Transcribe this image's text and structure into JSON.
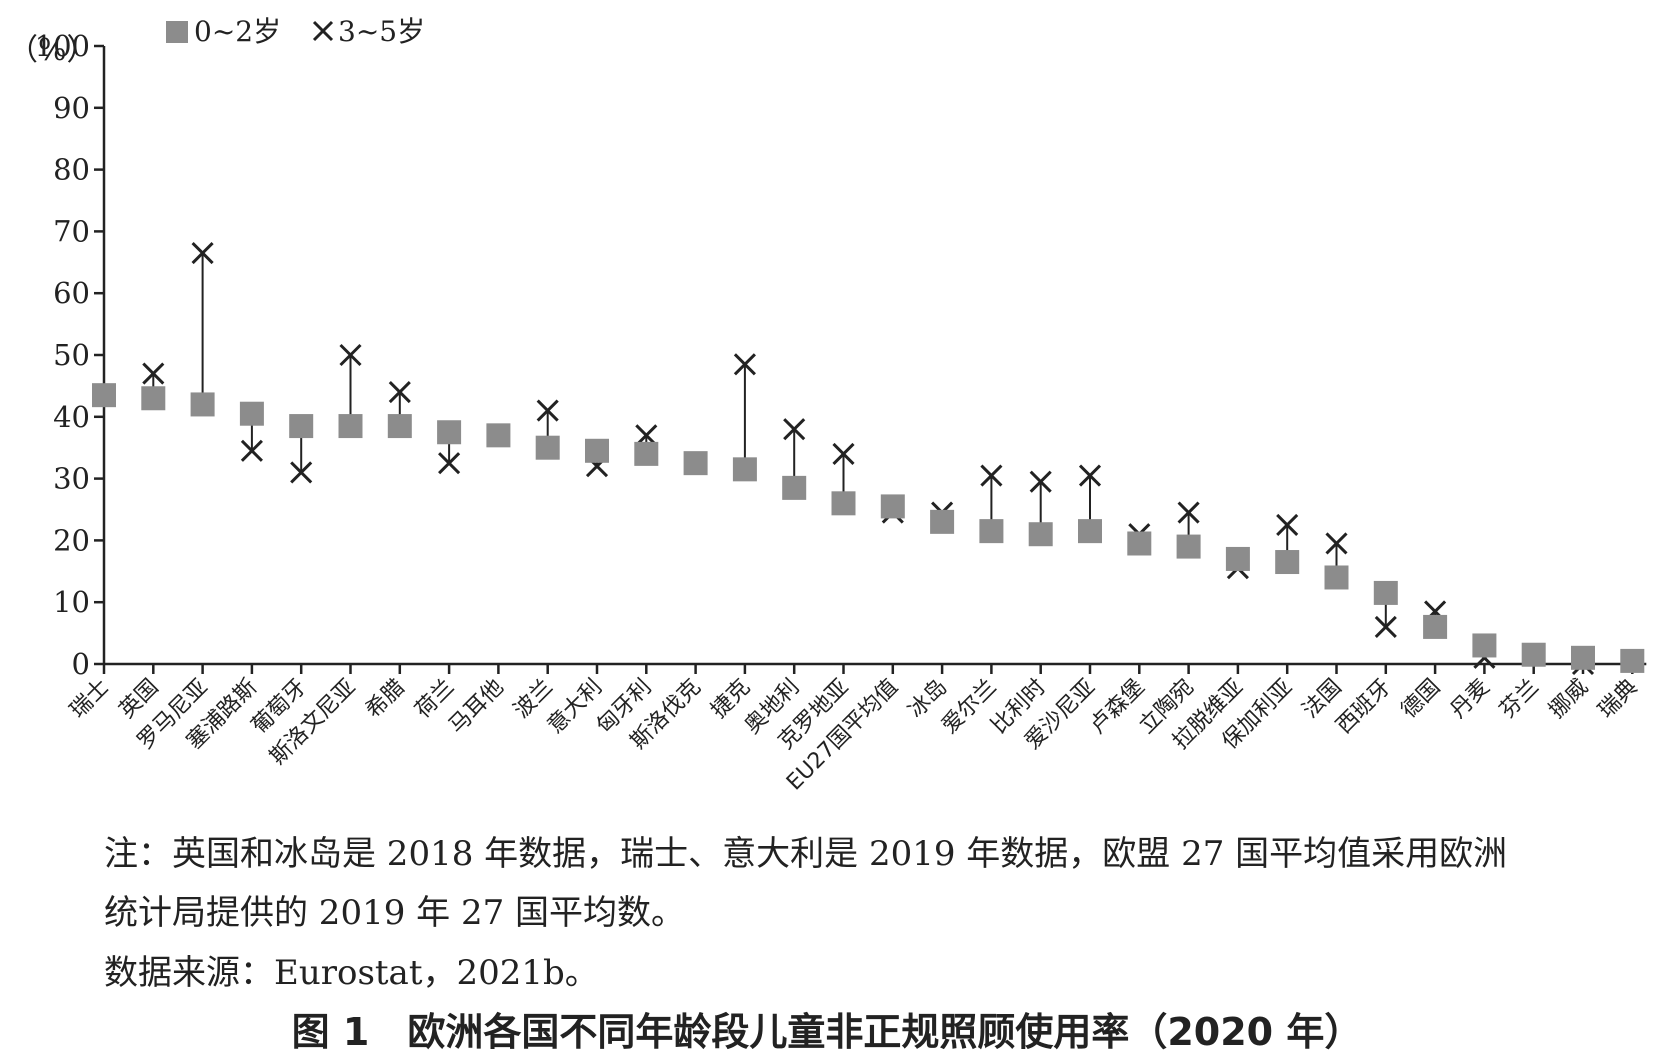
{
  "chart_data": {
    "type": "scatter",
    "ylabel": "（%）",
    "ylim": [
      0,
      100
    ],
    "yticks": [
      0,
      10,
      20,
      30,
      40,
      50,
      60,
      70,
      80,
      90,
      100
    ],
    "grid": false,
    "legend_position": "top-left",
    "categories": [
      "瑞士",
      "英国",
      "罗马尼亚",
      "塞浦路斯",
      "葡萄牙",
      "斯洛文尼亚",
      "希腊",
      "荷兰",
      "马耳他",
      "波兰",
      "意大利",
      "匈牙利",
      "斯洛伐克",
      "捷克",
      "奥地利",
      "克罗地亚",
      "EU27国平均值",
      "冰岛",
      "爱尔兰",
      "比利时",
      "爱沙尼亚",
      "卢森堡",
      "立陶宛",
      "拉脱维亚",
      "保加利亚",
      "法国",
      "西班牙",
      "德国",
      "丹麦",
      "芬兰",
      "挪威",
      "瑞典"
    ],
    "series": [
      {
        "name": "0~2岁",
        "marker": "square",
        "color": "#8c8c8c",
        "values": [
          43.5,
          43,
          42,
          40.5,
          38.5,
          38.5,
          38.5,
          37.5,
          37,
          35,
          34.5,
          34,
          32.5,
          31.5,
          28.5,
          26,
          25.5,
          23,
          21.5,
          21,
          21.5,
          19.5,
          19,
          17,
          16.5,
          14,
          11.5,
          6,
          3,
          1.5,
          1,
          0.5
        ]
      },
      {
        "name": "3~5岁",
        "marker": "x",
        "color": "#222222",
        "values": [
          null,
          47,
          66.5,
          34.5,
          31,
          50,
          44,
          32.5,
          null,
          41,
          32,
          37,
          null,
          48.5,
          38,
          34,
          24.5,
          24.5,
          30.5,
          29.5,
          30.5,
          21,
          24.5,
          15.5,
          22.5,
          19.5,
          6,
          8.5,
          1,
          null,
          0,
          null
        ]
      }
    ]
  },
  "notes": {
    "line1": "注：英国和冰岛是 2018 年数据，瑞士、意大利是 2019 年数据，欧盟 27 国平均值采用欧洲",
    "line2": "统计局提供的 2019 年 27 国平均数。",
    "source": "数据来源：Eurostat，2021b。"
  },
  "caption": "图 1　欧洲各国不同年龄段儿童非正规照顾使用率（2020 年）"
}
